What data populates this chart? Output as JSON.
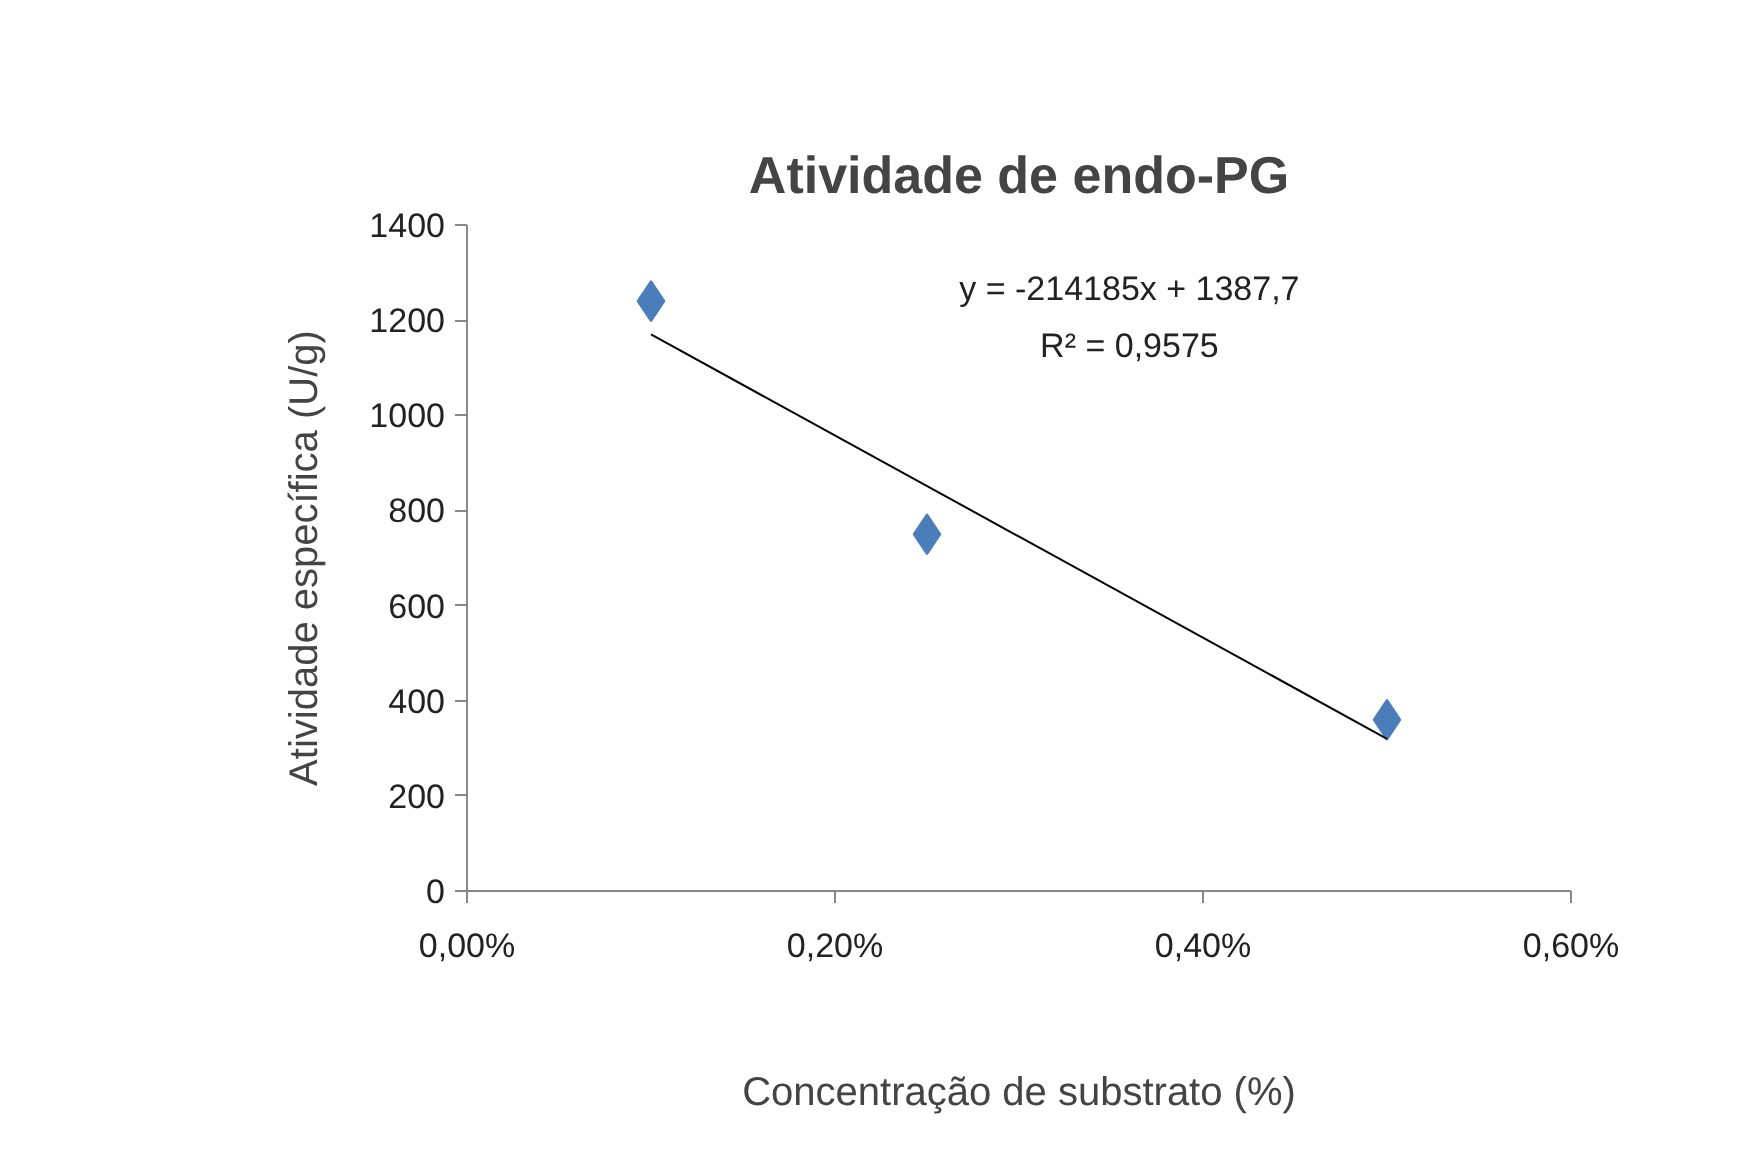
{
  "chart_data": {
    "type": "scatter",
    "title": "Atividade de endo-PG",
    "xlabel": "Concentração de substrato (%)",
    "ylabel": "Atividade específica (U/g)",
    "x": [
      0.001,
      0.0025,
      0.005
    ],
    "series": [
      {
        "color": "#4a7ebb",
        "values": [
          1240,
          750,
          360
        ],
        "marker": "diamond"
      },
      {
        "type": "line",
        "color": "#000000",
        "x": [
          0.001,
          0.005
        ],
        "values": [
          1170,
          320
        ],
        "line_style": "solid",
        "marker": "none"
      }
    ],
    "annotations": [
      "y = -214185x + 1387,7",
      "R² = 0,9575"
    ],
    "xlim": [
      0,
      0.006
    ],
    "ylim": [
      0,
      1400
    ],
    "xticks": [
      {
        "value": 0,
        "label": "0,00%"
      },
      {
        "value": 0.002,
        "label": "0,20%"
      },
      {
        "value": 0.004,
        "label": "0,40%"
      },
      {
        "value": 0.006,
        "label": "0,60%"
      }
    ],
    "yticks": [
      0,
      200,
      400,
      600,
      800,
      1000,
      1200,
      1400
    ],
    "grid": false
  }
}
